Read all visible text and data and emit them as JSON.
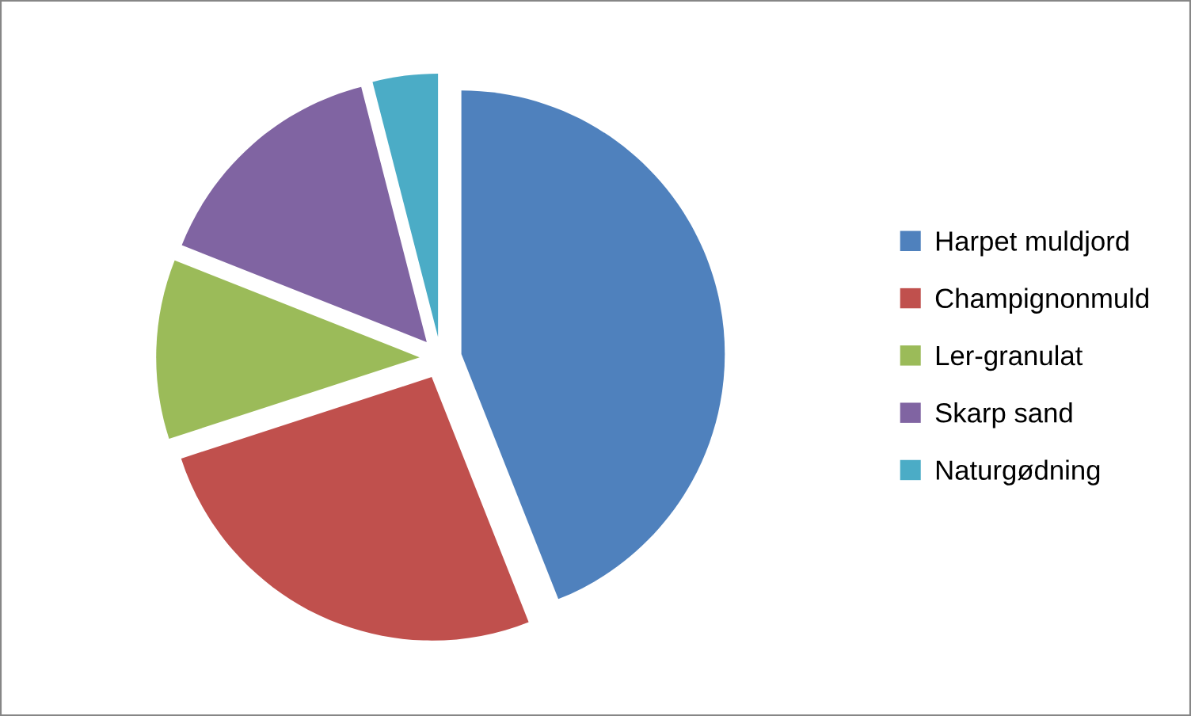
{
  "chart_data": {
    "type": "pie",
    "categories": [
      "Harpet muldjord",
      "Champignonmuld",
      "Ler-granulat",
      "Skarp sand",
      "Naturgødning"
    ],
    "values": [
      44,
      26,
      11,
      15,
      4
    ],
    "colors": [
      "#4f81bd",
      "#c0504d",
      "#9bbb59",
      "#8064a2",
      "#4bacc6"
    ],
    "legend": "right"
  }
}
